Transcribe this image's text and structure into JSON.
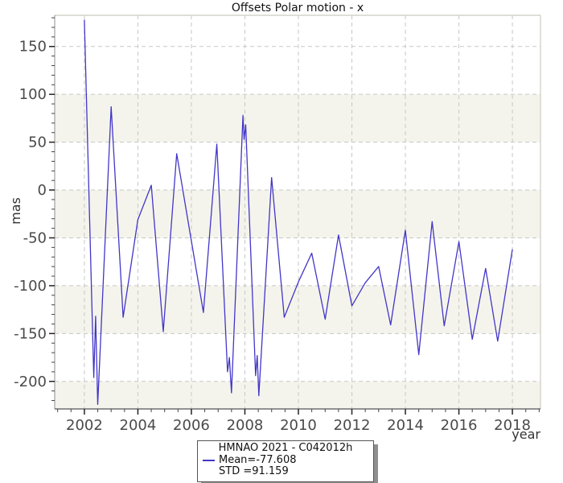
{
  "chart_data": {
    "type": "line",
    "title": "Offsets Polar motion - x",
    "xlabel": "year",
    "ylabel": "mas",
    "xlim": [
      2000.89,
      2019.05
    ],
    "ylim": [
      -228.8,
      182.6
    ],
    "xticks": [
      2002,
      2004,
      2006,
      2008,
      2010,
      2012,
      2014,
      2016,
      2018
    ],
    "yticks": [
      150,
      100,
      50,
      0,
      -50,
      -100,
      -150,
      -200
    ],
    "x_minor_step": 0.5,
    "y_minor_step": 10,
    "grid": "dashed",
    "grid_color": "#c7c7c7",
    "bands": {
      "color": "#f4f4ec",
      "tops": [
        100,
        0,
        -100,
        -200
      ],
      "height": 50
    },
    "legend_position": "bottom-center",
    "series": [
      {
        "name": "HMNAO 2021 - C042012h",
        "color": "#4236c8",
        "points": [
          [
            2002.0,
            178
          ],
          [
            2002.35,
            -196
          ],
          [
            2002.42,
            -132
          ],
          [
            2002.5,
            -224
          ],
          [
            2003.0,
            87
          ],
          [
            2003.45,
            -133
          ],
          [
            2004.0,
            -31
          ],
          [
            2004.5,
            5
          ],
          [
            2004.95,
            -148
          ],
          [
            2005.45,
            38
          ],
          [
            2006.45,
            -128
          ],
          [
            2006.95,
            48
          ],
          [
            2007.35,
            -190
          ],
          [
            2007.42,
            -175
          ],
          [
            2007.5,
            -212
          ],
          [
            2007.93,
            78
          ],
          [
            2007.97,
            53
          ],
          [
            2008.03,
            68
          ],
          [
            2008.4,
            -194
          ],
          [
            2008.46,
            -173
          ],
          [
            2008.52,
            -215
          ],
          [
            2009.0,
            13
          ],
          [
            2009.47,
            -133
          ],
          [
            2010.0,
            -96
          ],
          [
            2010.5,
            -66
          ],
          [
            2011.0,
            -135
          ],
          [
            2011.5,
            -47
          ],
          [
            2012.0,
            -121
          ],
          [
            2012.5,
            -97
          ],
          [
            2013.0,
            -80
          ],
          [
            2013.45,
            -141
          ],
          [
            2014.0,
            -42
          ],
          [
            2014.5,
            -172
          ],
          [
            2015.0,
            -33
          ],
          [
            2015.45,
            -142
          ],
          [
            2016.0,
            -54
          ],
          [
            2016.5,
            -156
          ],
          [
            2017.0,
            -82
          ],
          [
            2017.45,
            -158
          ],
          [
            2018.0,
            -62
          ]
        ]
      }
    ],
    "stats": {
      "mean": -77.608,
      "std": 91.159
    }
  },
  "legend": {
    "title": "HMNAO 2021 - C042012h",
    "mean": "Mean=-77.608",
    "std": "STD =91.159"
  }
}
